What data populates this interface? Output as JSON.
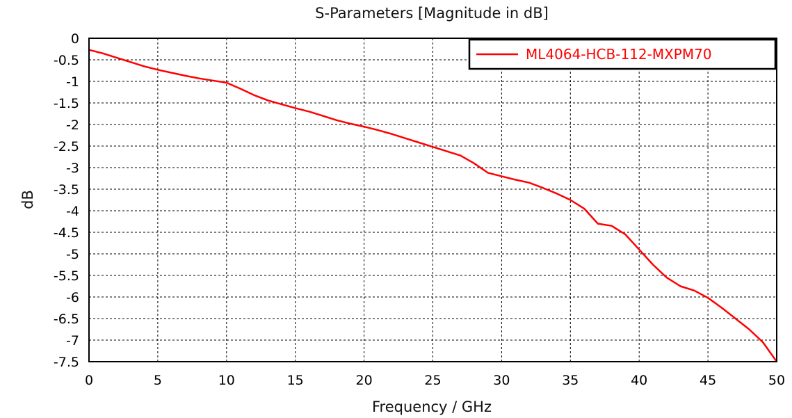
{
  "chart_data": {
    "type": "line",
    "title": "S-Parameters [Magnitude in dB]",
    "xlabel": "Frequency / GHz",
    "ylabel": "dB",
    "xlim": [
      0,
      50
    ],
    "ylim": [
      -7.5,
      0
    ],
    "xticks": [
      "0",
      "5",
      "10",
      "15",
      "20",
      "25",
      "30",
      "35",
      "40",
      "45",
      "50"
    ],
    "yticks": [
      "0",
      "-0.5",
      "-1",
      "-1.5",
      "-2",
      "-2.5",
      "-3",
      "-3.5",
      "-4",
      "-4.5",
      "-5",
      "-5.5",
      "-6",
      "-6.5",
      "-7",
      "-7.5"
    ],
    "grid": true,
    "legend_position": "top-right",
    "series": [
      {
        "name": "ML4064-HCB-112-MXPM70",
        "color": "#ff0000",
        "x": [
          0,
          1,
          2,
          3,
          4,
          5,
          6,
          7,
          8,
          9,
          10,
          11,
          12,
          13,
          14,
          15,
          16,
          17,
          18,
          19,
          20,
          21,
          22,
          23,
          24,
          25,
          26,
          27,
          28,
          29,
          30,
          31,
          32,
          33,
          34,
          35,
          36,
          37,
          38,
          39,
          40,
          41,
          42,
          43,
          44,
          45,
          46,
          47,
          48,
          49,
          50
        ],
        "y": [
          -0.27,
          -0.35,
          -0.45,
          -0.55,
          -0.65,
          -0.73,
          -0.8,
          -0.87,
          -0.93,
          -0.98,
          -1.03,
          -1.17,
          -1.32,
          -1.44,
          -1.53,
          -1.62,
          -1.7,
          -1.8,
          -1.9,
          -1.98,
          -2.05,
          -2.13,
          -2.22,
          -2.32,
          -2.42,
          -2.52,
          -2.62,
          -2.72,
          -2.9,
          -3.12,
          -3.2,
          -3.28,
          -3.35,
          -3.47,
          -3.6,
          -3.75,
          -3.95,
          -4.3,
          -4.35,
          -4.55,
          -4.9,
          -5.25,
          -5.55,
          -5.75,
          -5.85,
          -6.02,
          -6.25,
          -6.5,
          -6.75,
          -7.05,
          -7.5
        ]
      }
    ]
  }
}
